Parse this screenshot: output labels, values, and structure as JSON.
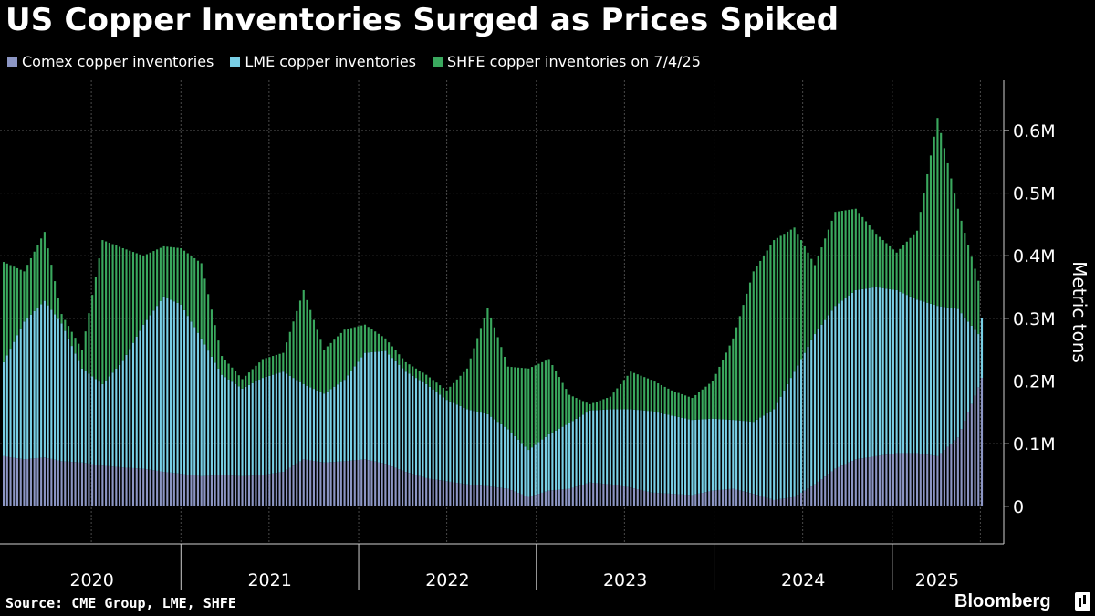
{
  "header": {
    "title": "US Copper Inventories Surged as Prices Spiked"
  },
  "colors": {
    "background": "#000000",
    "comex": "#8c96c4",
    "lme": "#79cfe6",
    "shfe": "#3aa85e",
    "grid": "#4a4a4a",
    "axis": "#cfcfcf"
  },
  "footer": {
    "source": "Source: CME Group, LME, SHFE",
    "brand": "Bloomberg"
  },
  "chart_data": {
    "type": "bar",
    "stacked": true,
    "title": "US Copper Inventories Surged as Prices Spiked",
    "ylabel": "Metric tons",
    "ylim": [
      -60000,
      680000
    ],
    "yticks": [
      0,
      100000,
      200000,
      300000,
      400000,
      500000,
      600000
    ],
    "ytick_labels": [
      "0",
      "0.1M",
      "0.2M",
      "0.3M",
      "0.4M",
      "0.5M",
      "0.6M"
    ],
    "x_range": [
      "2020-01-01",
      "2025-07-04"
    ],
    "year_labels": [
      "2020",
      "2021",
      "2022",
      "2023",
      "2024",
      "2025"
    ],
    "legend": [
      "Comex copper inventories",
      "LME copper inventories",
      "SHFE copper inventories on 7/4/25"
    ],
    "legend_position": "top-left",
    "grid": true,
    "frequency": "weekly",
    "keyframes": {
      "dates": [
        "2020-01-03",
        "2020-02-14",
        "2020-03-27",
        "2020-05-01",
        "2020-06-12",
        "2020-07-24",
        "2020-09-04",
        "2020-10-16",
        "2020-11-27",
        "2021-01-01",
        "2021-02-12",
        "2021-03-26",
        "2021-05-07",
        "2021-06-18",
        "2021-07-30",
        "2021-09-10",
        "2021-10-22",
        "2021-12-03",
        "2022-01-14",
        "2022-02-25",
        "2022-04-08",
        "2022-05-20",
        "2022-07-01",
        "2022-08-12",
        "2022-09-23",
        "2022-11-04",
        "2022-12-16",
        "2023-01-27",
        "2023-03-10",
        "2023-04-21",
        "2023-06-02",
        "2023-07-14",
        "2023-08-25",
        "2023-10-06",
        "2023-11-17",
        "2023-12-29",
        "2024-02-09",
        "2024-03-22",
        "2024-05-03",
        "2024-06-14",
        "2024-07-26",
        "2024-09-06",
        "2024-10-18",
        "2024-11-29",
        "2025-01-10",
        "2025-02-21",
        "2025-04-04",
        "2025-05-16",
        "2025-06-27",
        "2025-07-04"
      ],
      "comex": [
        80000,
        75000,
        78000,
        72000,
        70000,
        65000,
        62000,
        60000,
        55000,
        52000,
        48000,
        50000,
        48000,
        50000,
        55000,
        75000,
        70000,
        72000,
        75000,
        68000,
        55000,
        45000,
        40000,
        35000,
        32000,
        28000,
        15000,
        25000,
        28000,
        38000,
        35000,
        30000,
        22000,
        20000,
        18000,
        25000,
        28000,
        20000,
        10000,
        15000,
        35000,
        60000,
        75000,
        80000,
        85000,
        85000,
        80000,
        110000,
        190000,
        205000
      ],
      "lme": [
        150000,
        220000,
        250000,
        220000,
        150000,
        130000,
        170000,
        230000,
        280000,
        270000,
        220000,
        160000,
        140000,
        155000,
        160000,
        120000,
        110000,
        130000,
        170000,
        180000,
        160000,
        150000,
        130000,
        120000,
        115000,
        95000,
        75000,
        90000,
        105000,
        115000,
        120000,
        125000,
        130000,
        125000,
        120000,
        115000,
        110000,
        115000,
        145000,
        200000,
        240000,
        260000,
        270000,
        270000,
        260000,
        245000,
        240000,
        205000,
        85000,
        95000
      ],
      "shfe": [
        160000,
        80000,
        110000,
        15000,
        30000,
        230000,
        180000,
        110000,
        80000,
        90000,
        120000,
        30000,
        15000,
        30000,
        30000,
        150000,
        70000,
        80000,
        45000,
        20000,
        15000,
        15000,
        15000,
        65000,
        170000,
        100000,
        130000,
        120000,
        45000,
        10000,
        20000,
        60000,
        50000,
        40000,
        35000,
        60000,
        130000,
        240000,
        270000,
        230000,
        110000,
        150000,
        130000,
        85000,
        60000,
        110000,
        300000,
        160000,
        85000,
        0
      ]
    },
    "annotations": [
      "SHFE copper inventories on 7/4/25"
    ]
  }
}
